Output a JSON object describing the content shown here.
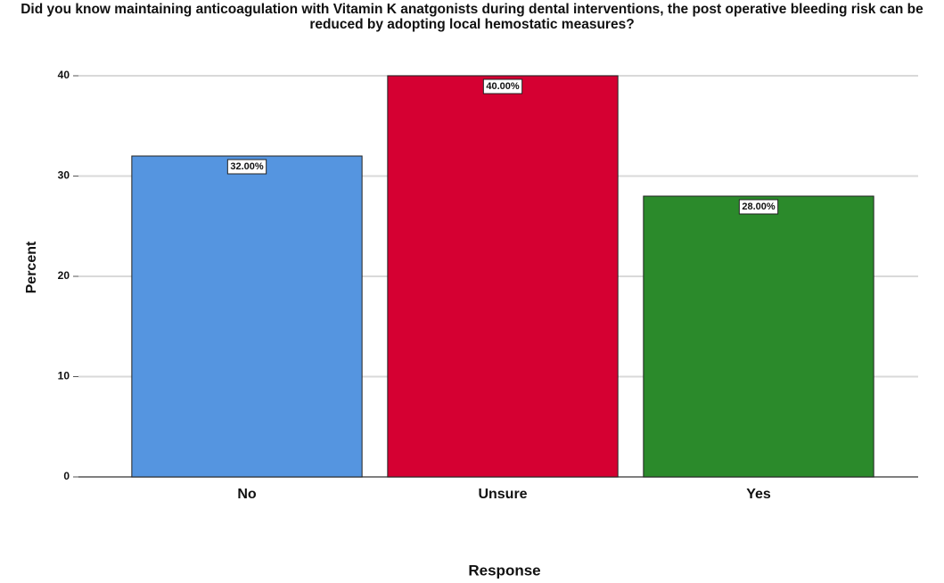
{
  "chart_data": {
    "type": "bar",
    "title": "Did you know maintaining anticoagulation with Vitamin K anatgonists during dental interventions, the post operative bleeding risk can be reduced by adopting local hemostatic measures?",
    "x_label": "Response",
    "y_label": "Percent",
    "categories": [
      "No",
      "Unsure",
      "Yes"
    ],
    "values": [
      32,
      40,
      28
    ],
    "value_labels": [
      "32.00%",
      "40.00%",
      "28.00%"
    ],
    "colors": [
      "#5595e0",
      "#d50032",
      "#2b8a2b"
    ],
    "ylim": [
      0,
      40
    ],
    "yticks": [
      0,
      10,
      20,
      30,
      40
    ],
    "grid": true
  }
}
